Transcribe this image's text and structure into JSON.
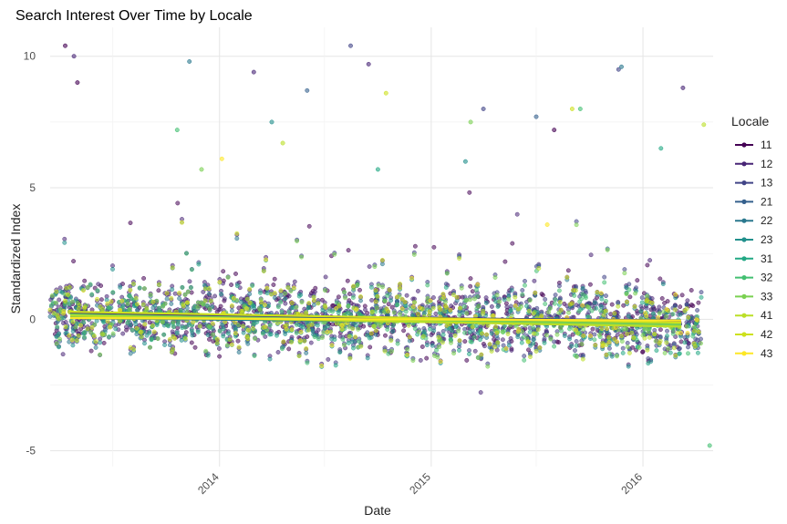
{
  "chart_data": {
    "type": "scatter",
    "title": "Search Interest Over Time by Locale",
    "xlabel": "Date",
    "ylabel": "Standardized Index",
    "x_range": [
      "2013-03-15",
      "2016-05-01"
    ],
    "ylim": [
      -5.6,
      11.1
    ],
    "x_ticks": [
      {
        "date": "2014-01-01",
        "label": "2014"
      },
      {
        "date": "2015-01-01",
        "label": "2015"
      },
      {
        "date": "2016-01-01",
        "label": "2016"
      }
    ],
    "y_ticks": [
      -5,
      0,
      5,
      10
    ],
    "grid": true,
    "legend": {
      "title": "Locale",
      "position": "right"
    },
    "series": [
      {
        "name": "11",
        "color": "#440154",
        "trend": [
          0.25,
          -0.1
        ],
        "outliers": [
          [
            "2013-04-10",
            10.4
          ],
          [
            "2013-05-01",
            9.0
          ],
          [
            "2015-08-01",
            7.2
          ]
        ]
      },
      {
        "name": "12",
        "color": "#482576",
        "trend": [
          0.22,
          -0.12
        ],
        "outliers": [
          [
            "2013-04-25",
            10.0
          ],
          [
            "2014-03-01",
            9.4
          ],
          [
            "2014-09-15",
            9.7
          ],
          [
            "2016-03-10",
            8.8
          ]
        ]
      },
      {
        "name": "13",
        "color": "#414487",
        "trend": [
          0.15,
          -0.05
        ],
        "outliers": [
          [
            "2014-08-15",
            10.4
          ],
          [
            "2015-11-20",
            9.5
          ],
          [
            "2015-04-01",
            8.0
          ]
        ]
      },
      {
        "name": "21",
        "color": "#35608D",
        "trend": [
          0.1,
          -0.15
        ],
        "outliers": [
          [
            "2014-06-01",
            8.7
          ],
          [
            "2015-07-01",
            7.7
          ]
        ]
      },
      {
        "name": "22",
        "color": "#2A788E",
        "trend": [
          0.05,
          -0.2
        ],
        "outliers": [
          [
            "2013-11-10",
            9.8
          ],
          [
            "2015-11-25",
            9.6
          ]
        ]
      },
      {
        "name": "23",
        "color": "#21908C",
        "trend": [
          0.08,
          -0.18
        ],
        "outliers": [
          [
            "2014-04-01",
            7.5
          ],
          [
            "2015-03-01",
            6.0
          ]
        ]
      },
      {
        "name": "31",
        "color": "#22A884",
        "trend": [
          0.12,
          -0.25
        ],
        "outliers": [
          [
            "2014-10-01",
            5.7
          ],
          [
            "2016-02-01",
            6.5
          ]
        ]
      },
      {
        "name": "32",
        "color": "#43BF71",
        "trend": [
          0.2,
          -0.3
        ],
        "outliers": [
          [
            "2013-10-20",
            7.2
          ],
          [
            "2015-09-15",
            8.0
          ],
          [
            "2016-04-25",
            -4.8
          ]
        ]
      },
      {
        "name": "33",
        "color": "#7AD151",
        "trend": [
          0.18,
          -0.22
        ],
        "outliers": [
          [
            "2013-12-01",
            5.7
          ],
          [
            "2015-03-10",
            7.5
          ]
        ]
      },
      {
        "name": "41",
        "color": "#BBDF27",
        "trend": [
          0.15,
          -0.3
        ],
        "outliers": [
          [
            "2014-04-20",
            6.7
          ],
          [
            "2016-04-15",
            7.4
          ]
        ]
      },
      {
        "name": "42",
        "color": "#CDE11D",
        "trend": [
          0.3,
          -0.15
        ],
        "outliers": [
          [
            "2014-10-15",
            8.6
          ],
          [
            "2015-09-01",
            8.0
          ]
        ]
      },
      {
        "name": "43",
        "color": "#FDE725",
        "trend": [
          0.05,
          -0.05
        ],
        "outliers": [
          [
            "2014-01-05",
            6.1
          ],
          [
            "2015-07-20",
            3.6
          ]
        ]
      }
    ]
  }
}
